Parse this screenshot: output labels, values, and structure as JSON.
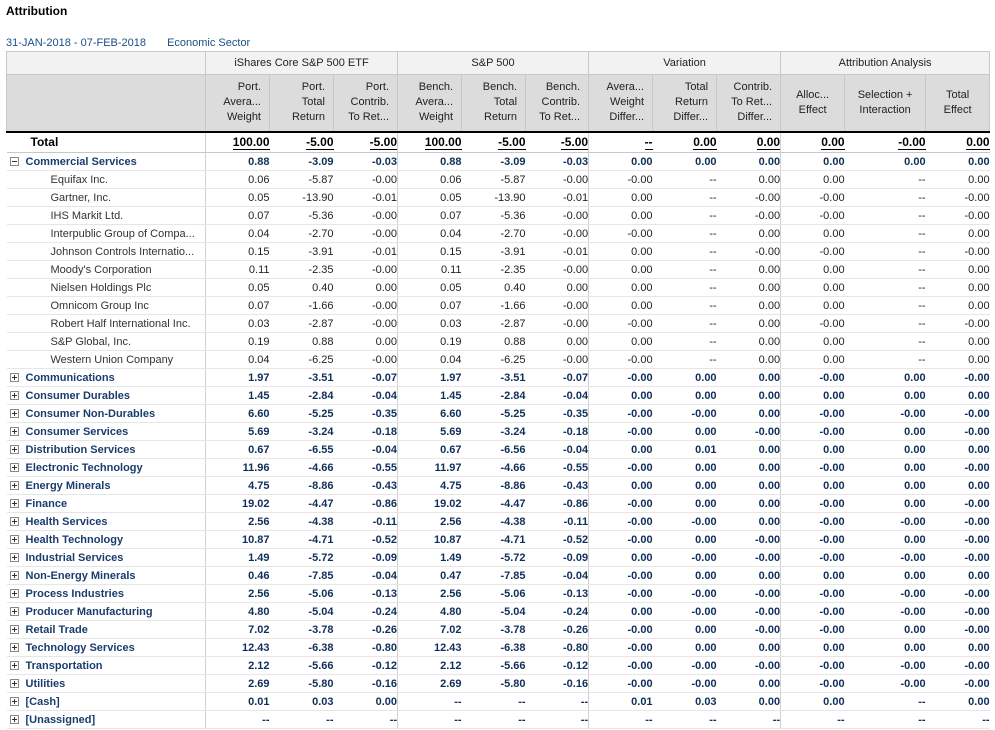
{
  "title": "Attribution",
  "subheader": {
    "date_range": "31-JAN-2018 - 07-FEB-2018",
    "grouping": "Economic Sector"
  },
  "groups": [
    "iShares Core S&P 500 ETF",
    "S&P 500",
    "Variation",
    "Attribution Analysis"
  ],
  "columns": [
    [
      "Port.",
      "Avera...",
      "Weight"
    ],
    [
      "Port.",
      "Total",
      "Return"
    ],
    [
      "Port.",
      "Contrib.",
      "To Ret..."
    ],
    [
      "Bench.",
      "Avera...",
      "Weight"
    ],
    [
      "Bench.",
      "Total",
      "Return"
    ],
    [
      "Bench.",
      "Contrib.",
      "To Ret..."
    ],
    [
      "Avera...",
      "Weight",
      "Differ..."
    ],
    [
      "Total",
      "Return",
      "Differ..."
    ],
    [
      "Contrib.",
      "To Ret...",
      "Differ..."
    ],
    [
      "Alloc...",
      "Effect"
    ],
    [
      "Selection +",
      "Interaction"
    ],
    [
      "Total",
      "Effect"
    ]
  ],
  "total": {
    "label": "Total",
    "values": [
      "100.00",
      "-5.00",
      "-5.00",
      "100.00",
      "-5.00",
      "-5.00",
      "--",
      "0.00",
      "0.00",
      "0.00",
      "-0.00",
      "0.00"
    ]
  },
  "rows": [
    {
      "type": "sector",
      "expanded": true,
      "label": "Commercial Services",
      "values": [
        "0.88",
        "-3.09",
        "-0.03",
        "0.88",
        "-3.09",
        "-0.03",
        "0.00",
        "0.00",
        "0.00",
        "0.00",
        "0.00",
        "0.00"
      ]
    },
    {
      "type": "child",
      "label": "Equifax Inc.",
      "values": [
        "0.06",
        "-5.87",
        "-0.00",
        "0.06",
        "-5.87",
        "-0.00",
        "-0.00",
        "--",
        "0.00",
        "0.00",
        "--",
        "0.00"
      ]
    },
    {
      "type": "child",
      "label": "Gartner, Inc.",
      "values": [
        "0.05",
        "-13.90",
        "-0.01",
        "0.05",
        "-13.90",
        "-0.01",
        "0.00",
        "--",
        "-0.00",
        "-0.00",
        "--",
        "-0.00"
      ]
    },
    {
      "type": "child",
      "label": "IHS Markit Ltd.",
      "values": [
        "0.07",
        "-5.36",
        "-0.00",
        "0.07",
        "-5.36",
        "-0.00",
        "0.00",
        "--",
        "-0.00",
        "-0.00",
        "--",
        "-0.00"
      ]
    },
    {
      "type": "child",
      "label": "Interpublic Group of Compa...",
      "values": [
        "0.04",
        "-2.70",
        "-0.00",
        "0.04",
        "-2.70",
        "-0.00",
        "-0.00",
        "--",
        "0.00",
        "0.00",
        "--",
        "0.00"
      ]
    },
    {
      "type": "child",
      "label": "Johnson Controls Internatio...",
      "values": [
        "0.15",
        "-3.91",
        "-0.01",
        "0.15",
        "-3.91",
        "-0.01",
        "0.00",
        "--",
        "-0.00",
        "-0.00",
        "--",
        "-0.00"
      ]
    },
    {
      "type": "child",
      "label": "Moody's Corporation",
      "values": [
        "0.11",
        "-2.35",
        "-0.00",
        "0.11",
        "-2.35",
        "-0.00",
        "0.00",
        "--",
        "0.00",
        "0.00",
        "--",
        "0.00"
      ]
    },
    {
      "type": "child",
      "label": "Nielsen Holdings Plc",
      "values": [
        "0.05",
        "0.40",
        "0.00",
        "0.05",
        "0.40",
        "0.00",
        "0.00",
        "--",
        "0.00",
        "0.00",
        "--",
        "0.00"
      ]
    },
    {
      "type": "child",
      "label": "Omnicom Group Inc",
      "values": [
        "0.07",
        "-1.66",
        "-0.00",
        "0.07",
        "-1.66",
        "-0.00",
        "0.00",
        "--",
        "0.00",
        "0.00",
        "--",
        "0.00"
      ]
    },
    {
      "type": "child",
      "label": "Robert Half International Inc.",
      "values": [
        "0.03",
        "-2.87",
        "-0.00",
        "0.03",
        "-2.87",
        "-0.00",
        "-0.00",
        "--",
        "0.00",
        "-0.00",
        "--",
        "-0.00"
      ]
    },
    {
      "type": "child",
      "label": "S&P Global, Inc.",
      "values": [
        "0.19",
        "0.88",
        "0.00",
        "0.19",
        "0.88",
        "0.00",
        "0.00",
        "--",
        "0.00",
        "0.00",
        "--",
        "0.00"
      ]
    },
    {
      "type": "child",
      "label": "Western Union Company",
      "values": [
        "0.04",
        "-6.25",
        "-0.00",
        "0.04",
        "-6.25",
        "-0.00",
        "-0.00",
        "--",
        "0.00",
        "0.00",
        "--",
        "0.00"
      ]
    },
    {
      "type": "sector",
      "expanded": false,
      "label": "Communications",
      "values": [
        "1.97",
        "-3.51",
        "-0.07",
        "1.97",
        "-3.51",
        "-0.07",
        "-0.00",
        "0.00",
        "0.00",
        "-0.00",
        "0.00",
        "-0.00"
      ]
    },
    {
      "type": "sector",
      "expanded": false,
      "label": "Consumer Durables",
      "values": [
        "1.45",
        "-2.84",
        "-0.04",
        "1.45",
        "-2.84",
        "-0.04",
        "0.00",
        "0.00",
        "0.00",
        "0.00",
        "0.00",
        "0.00"
      ]
    },
    {
      "type": "sector",
      "expanded": false,
      "label": "Consumer Non-Durables",
      "values": [
        "6.60",
        "-5.25",
        "-0.35",
        "6.60",
        "-5.25",
        "-0.35",
        "-0.00",
        "-0.00",
        "0.00",
        "-0.00",
        "-0.00",
        "-0.00"
      ]
    },
    {
      "type": "sector",
      "expanded": false,
      "label": "Consumer Services",
      "values": [
        "5.69",
        "-3.24",
        "-0.18",
        "5.69",
        "-3.24",
        "-0.18",
        "-0.00",
        "0.00",
        "-0.00",
        "-0.00",
        "0.00",
        "-0.00"
      ]
    },
    {
      "type": "sector",
      "expanded": false,
      "label": "Distribution Services",
      "values": [
        "0.67",
        "-6.55",
        "-0.04",
        "0.67",
        "-6.56",
        "-0.04",
        "0.00",
        "0.01",
        "0.00",
        "0.00",
        "0.00",
        "0.00"
      ]
    },
    {
      "type": "sector",
      "expanded": false,
      "label": "Electronic Technology",
      "values": [
        "11.96",
        "-4.66",
        "-0.55",
        "11.97",
        "-4.66",
        "-0.55",
        "-0.00",
        "0.00",
        "0.00",
        "-0.00",
        "0.00",
        "-0.00"
      ]
    },
    {
      "type": "sector",
      "expanded": false,
      "label": "Energy Minerals",
      "values": [
        "4.75",
        "-8.86",
        "-0.43",
        "4.75",
        "-8.86",
        "-0.43",
        "0.00",
        "0.00",
        "0.00",
        "0.00",
        "0.00",
        "0.00"
      ]
    },
    {
      "type": "sector",
      "expanded": false,
      "label": "Finance",
      "values": [
        "19.02",
        "-4.47",
        "-0.86",
        "19.02",
        "-4.47",
        "-0.86",
        "-0.00",
        "0.00",
        "0.00",
        "-0.00",
        "0.00",
        "-0.00"
      ]
    },
    {
      "type": "sector",
      "expanded": false,
      "label": "Health Services",
      "values": [
        "2.56",
        "-4.38",
        "-0.11",
        "2.56",
        "-4.38",
        "-0.11",
        "-0.00",
        "-0.00",
        "0.00",
        "-0.00",
        "-0.00",
        "-0.00"
      ]
    },
    {
      "type": "sector",
      "expanded": false,
      "label": "Health Technology",
      "values": [
        "10.87",
        "-4.71",
        "-0.52",
        "10.87",
        "-4.71",
        "-0.52",
        "-0.00",
        "0.00",
        "-0.00",
        "-0.00",
        "0.00",
        "-0.00"
      ]
    },
    {
      "type": "sector",
      "expanded": false,
      "label": "Industrial Services",
      "values": [
        "1.49",
        "-5.72",
        "-0.09",
        "1.49",
        "-5.72",
        "-0.09",
        "0.00",
        "-0.00",
        "-0.00",
        "-0.00",
        "-0.00",
        "-0.00"
      ]
    },
    {
      "type": "sector",
      "expanded": false,
      "label": "Non-Energy Minerals",
      "values": [
        "0.46",
        "-7.85",
        "-0.04",
        "0.47",
        "-7.85",
        "-0.04",
        "-0.00",
        "0.00",
        "0.00",
        "0.00",
        "0.00",
        "0.00"
      ]
    },
    {
      "type": "sector",
      "expanded": false,
      "label": "Process Industries",
      "values": [
        "2.56",
        "-5.06",
        "-0.13",
        "2.56",
        "-5.06",
        "-0.13",
        "-0.00",
        "-0.00",
        "-0.00",
        "-0.00",
        "-0.00",
        "-0.00"
      ]
    },
    {
      "type": "sector",
      "expanded": false,
      "label": "Producer Manufacturing",
      "values": [
        "4.80",
        "-5.04",
        "-0.24",
        "4.80",
        "-5.04",
        "-0.24",
        "0.00",
        "-0.00",
        "-0.00",
        "-0.00",
        "-0.00",
        "-0.00"
      ]
    },
    {
      "type": "sector",
      "expanded": false,
      "label": "Retail Trade",
      "values": [
        "7.02",
        "-3.78",
        "-0.26",
        "7.02",
        "-3.78",
        "-0.26",
        "-0.00",
        "0.00",
        "-0.00",
        "-0.00",
        "0.00",
        "-0.00"
      ]
    },
    {
      "type": "sector",
      "expanded": false,
      "label": "Technology Services",
      "values": [
        "12.43",
        "-6.38",
        "-0.80",
        "12.43",
        "-6.38",
        "-0.80",
        "-0.00",
        "0.00",
        "0.00",
        "0.00",
        "0.00",
        "0.00"
      ]
    },
    {
      "type": "sector",
      "expanded": false,
      "label": "Transportation",
      "values": [
        "2.12",
        "-5.66",
        "-0.12",
        "2.12",
        "-5.66",
        "-0.12",
        "-0.00",
        "-0.00",
        "-0.00",
        "-0.00",
        "-0.00",
        "-0.00"
      ]
    },
    {
      "type": "sector",
      "expanded": false,
      "label": "Utilities",
      "values": [
        "2.69",
        "-5.80",
        "-0.16",
        "2.69",
        "-5.80",
        "-0.16",
        "-0.00",
        "-0.00",
        "0.00",
        "-0.00",
        "-0.00",
        "-0.00"
      ]
    },
    {
      "type": "sector",
      "expanded": false,
      "label": "[Cash]",
      "values": [
        "0.01",
        "0.03",
        "0.00",
        "--",
        "--",
        "--",
        "0.01",
        "0.03",
        "0.00",
        "0.00",
        "--",
        "0.00"
      ]
    },
    {
      "type": "sector",
      "expanded": false,
      "label": "[Unassigned]",
      "values": [
        "--",
        "--",
        "--",
        "--",
        "--",
        "--",
        "--",
        "--",
        "--",
        "--",
        "--",
        "--"
      ]
    }
  ]
}
